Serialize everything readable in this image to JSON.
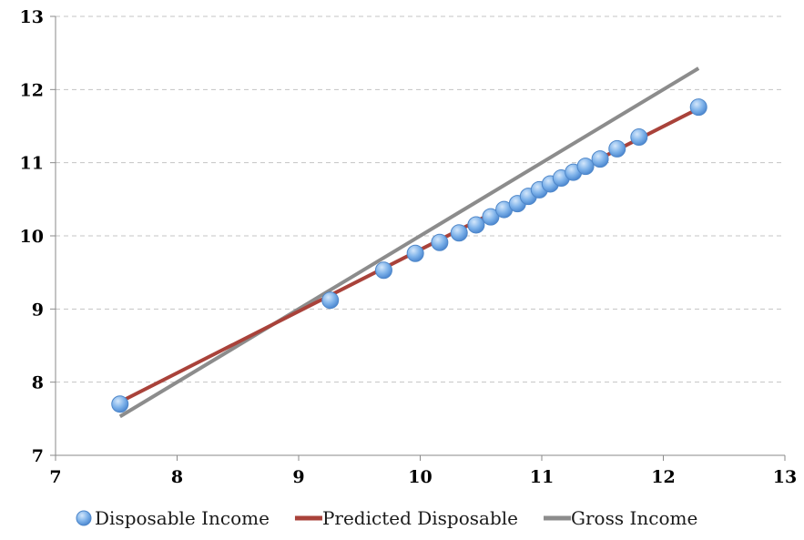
{
  "chart_data": {
    "type": "scatter",
    "title": "",
    "xlabel": "",
    "ylabel": "",
    "xlim": [
      7,
      13
    ],
    "ylim": [
      7,
      13
    ],
    "x_ticks": [
      "7",
      "8",
      "9",
      "10",
      "11",
      "12",
      "13"
    ],
    "y_ticks": [
      "7",
      "8",
      "9",
      "10",
      "11",
      "12",
      "13"
    ],
    "grid": "horizontal dashed",
    "legend_position": "bottom",
    "series": [
      {
        "name": "Disposable Income",
        "kind": "scatter",
        "color": "#6fa8e8",
        "points": [
          [
            7.53,
            7.7
          ],
          [
            9.26,
            9.12
          ],
          [
            9.7,
            9.53
          ],
          [
            9.96,
            9.76
          ],
          [
            10.16,
            9.91
          ],
          [
            10.32,
            10.04
          ],
          [
            10.46,
            10.15
          ],
          [
            10.58,
            10.26
          ],
          [
            10.69,
            10.36
          ],
          [
            10.8,
            10.44
          ],
          [
            10.89,
            10.54
          ],
          [
            10.98,
            10.63
          ],
          [
            11.07,
            10.71
          ],
          [
            11.16,
            10.79
          ],
          [
            11.26,
            10.87
          ],
          [
            11.36,
            10.95
          ],
          [
            11.48,
            11.05
          ],
          [
            11.62,
            11.19
          ],
          [
            11.8,
            11.35
          ],
          [
            12.29,
            11.76
          ]
        ]
      },
      {
        "name": "Predicted Disposable",
        "kind": "line",
        "color": "#a9423a",
        "points": [
          [
            7.53,
            7.73
          ],
          [
            12.29,
            11.74
          ]
        ]
      },
      {
        "name": "Gross Income",
        "kind": "line",
        "color": "#8c8c8c",
        "points": [
          [
            7.53,
            7.53
          ],
          [
            12.29,
            12.29
          ]
        ]
      }
    ]
  }
}
